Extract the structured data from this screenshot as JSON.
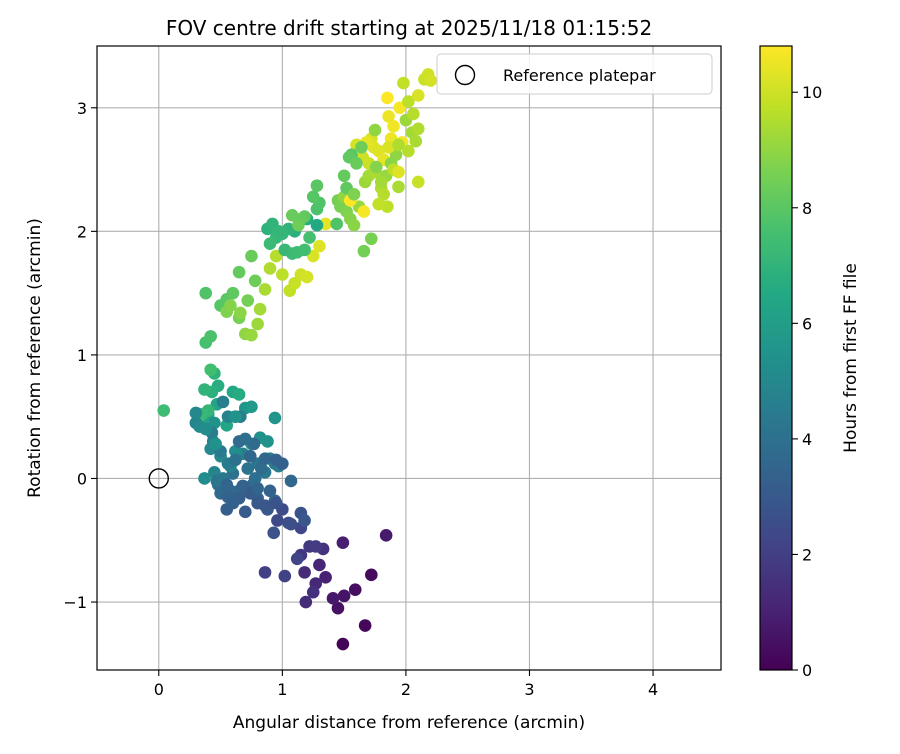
{
  "chart_data": {
    "type": "scatter",
    "title": "FOV centre drift starting at 2025/11/18 01:15:52",
    "xlabel": "Angular distance from reference (arcmin)",
    "ylabel": "Rotation from reference (arcmin)",
    "xlim": [
      -0.5,
      4.55
    ],
    "ylim": [
      -1.55,
      3.5
    ],
    "xticks": [
      0,
      1,
      2,
      3,
      4
    ],
    "yticks": [
      -1,
      0,
      1,
      2,
      3
    ],
    "xtick_labels": [
      "0",
      "1",
      "2",
      "3",
      "4"
    ],
    "ytick_labels": [
      "−1",
      "0",
      "1",
      "2",
      "3"
    ],
    "grid": true,
    "legend": {
      "position": "top-right",
      "label": "Reference platepar"
    },
    "reference_point": {
      "x": 0,
      "y": 0
    },
    "colorbar": {
      "label": "Hours from first FF file",
      "range": [
        0,
        10.8
      ],
      "ticks": [
        0,
        2,
        4,
        6,
        8,
        10
      ],
      "tick_labels": [
        "0",
        "2",
        "4",
        "6",
        "8",
        "10"
      ],
      "colormap": "viridis"
    },
    "points": [
      [
        1.49,
        -1.34,
        0.1
      ],
      [
        1.67,
        -1.19,
        0.2
      ],
      [
        1.72,
        -0.78,
        0.3
      ],
      [
        1.59,
        -0.9,
        0.4
      ],
      [
        1.45,
        -1.05,
        0.5
      ],
      [
        1.5,
        -0.95,
        0.6
      ],
      [
        1.41,
        -0.97,
        0.7
      ],
      [
        1.84,
        -0.46,
        0.8
      ],
      [
        1.49,
        -0.52,
        0.9
      ],
      [
        1.35,
        -0.8,
        1.0
      ],
      [
        1.3,
        -0.7,
        1.1
      ],
      [
        1.27,
        -0.85,
        1.2
      ],
      [
        1.18,
        -0.76,
        1.3
      ],
      [
        1.19,
        -1.0,
        1.4
      ],
      [
        1.25,
        -0.92,
        1.5
      ],
      [
        1.33,
        -0.57,
        1.6
      ],
      [
        1.15,
        -0.62,
        1.7
      ],
      [
        1.22,
        -0.55,
        1.8
      ],
      [
        1.27,
        -0.55,
        1.9
      ],
      [
        0.86,
        -0.76,
        2.0
      ],
      [
        1.02,
        -0.79,
        2.1
      ],
      [
        1.12,
        -0.65,
        2.2
      ],
      [
        1.15,
        -0.4,
        2.3
      ],
      [
        0.96,
        -0.34,
        2.4
      ],
      [
        1.0,
        -0.25,
        2.5
      ],
      [
        1.07,
        -0.37,
        2.6
      ],
      [
        0.93,
        -0.44,
        2.7
      ],
      [
        1.15,
        -0.28,
        2.8
      ],
      [
        1.18,
        -0.34,
        2.9
      ],
      [
        0.88,
        -0.25,
        3.0
      ],
      [
        0.7,
        -0.27,
        3.1
      ],
      [
        0.55,
        -0.25,
        3.2
      ],
      [
        0.8,
        -0.16,
        3.3
      ],
      [
        0.9,
        -0.1,
        3.4
      ],
      [
        0.94,
        -0.18,
        3.5
      ],
      [
        1.07,
        -0.02,
        3.6
      ],
      [
        0.76,
        -0.05,
        3.7
      ],
      [
        0.65,
        -0.1,
        3.8
      ],
      [
        0.48,
        -0.05,
        3.9
      ],
      [
        0.6,
        0.04,
        4.0
      ],
      [
        0.72,
        0.08,
        4.1
      ],
      [
        0.8,
        0.12,
        4.2
      ],
      [
        0.86,
        0.05,
        4.3
      ],
      [
        0.94,
        0.12,
        4.4
      ],
      [
        0.97,
        0.1,
        4.5
      ],
      [
        0.9,
        0.16,
        4.6
      ],
      [
        0.68,
        0.2,
        4.7
      ],
      [
        0.58,
        0.1,
        4.8
      ],
      [
        0.45,
        0.05,
        4.9
      ],
      [
        0.5,
        0.18,
        5.0
      ],
      [
        0.42,
        0.24,
        5.1
      ],
      [
        0.62,
        0.22,
        5.2
      ],
      [
        0.75,
        0.28,
        5.3
      ],
      [
        0.82,
        0.33,
        5.4
      ],
      [
        0.88,
        0.3,
        5.5
      ],
      [
        0.94,
        0.49,
        5.6
      ],
      [
        0.7,
        0.57,
        5.7
      ],
      [
        0.75,
        0.58,
        5.8
      ],
      [
        0.62,
        0.5,
        5.9
      ],
      [
        0.37,
        0.41,
        6.0
      ],
      [
        0.35,
        0.46,
        6.1
      ],
      [
        0.4,
        0.52,
        6.2
      ],
      [
        0.47,
        0.6,
        6.3
      ],
      [
        0.55,
        0.43,
        6.4
      ],
      [
        0.6,
        0.7,
        6.5
      ],
      [
        0.65,
        0.68,
        6.6
      ],
      [
        0.48,
        0.75,
        6.7
      ],
      [
        0.43,
        0.7,
        6.8
      ],
      [
        0.45,
        0.85,
        6.9
      ],
      [
        0.37,
        0.72,
        7.0
      ],
      [
        0.4,
        0.55,
        7.1
      ],
      [
        0.35,
        0.52,
        7.2
      ],
      [
        0.32,
        0.48,
        7.3
      ],
      [
        0.04,
        0.55,
        7.4
      ],
      [
        0.42,
        0.88,
        7.5
      ],
      [
        0.38,
        1.1,
        7.6
      ],
      [
        0.42,
        1.15,
        7.7
      ],
      [
        0.38,
        1.5,
        7.8
      ],
      [
        0.5,
        1.4,
        7.9
      ],
      [
        0.55,
        1.45,
        8.0
      ],
      [
        0.6,
        1.5,
        8.1
      ],
      [
        0.65,
        1.67,
        8.2
      ],
      [
        0.75,
        1.8,
        8.3
      ],
      [
        0.78,
        1.6,
        8.4
      ],
      [
        0.72,
        1.44,
        8.5
      ],
      [
        0.65,
        1.3,
        8.6
      ],
      [
        0.55,
        1.35,
        8.7
      ],
      [
        0.58,
        1.4,
        8.8
      ],
      [
        0.66,
        1.34,
        8.9
      ],
      [
        0.7,
        1.17,
        9.0
      ],
      [
        0.75,
        1.16,
        9.1
      ],
      [
        0.8,
        1.25,
        9.2
      ],
      [
        0.82,
        1.37,
        9.3
      ],
      [
        0.86,
        1.53,
        9.4
      ],
      [
        0.9,
        1.7,
        9.5
      ],
      [
        0.95,
        1.8,
        9.6
      ],
      [
        1.0,
        1.65,
        9.7
      ],
      [
        1.06,
        1.52,
        9.8
      ],
      [
        1.1,
        1.58,
        9.9
      ],
      [
        1.15,
        1.65,
        10.0
      ],
      [
        1.2,
        1.63,
        10.1
      ],
      [
        1.25,
        1.8,
        10.2
      ],
      [
        1.3,
        1.88,
        10.3
      ],
      [
        1.35,
        2.06,
        10.4
      ],
      [
        1.28,
        2.05,
        6.5
      ],
      [
        1.2,
        2.1,
        6.6
      ],
      [
        1.1,
        2.0,
        6.8
      ],
      [
        1.05,
        2.02,
        7.0
      ],
      [
        1.0,
        1.98,
        7.1
      ],
      [
        0.95,
        1.95,
        7.2
      ],
      [
        0.9,
        1.9,
        7.3
      ],
      [
        0.88,
        2.02,
        6.9
      ],
      [
        0.92,
        2.06,
        7.0
      ],
      [
        0.97,
        2.0,
        7.1
      ],
      [
        1.02,
        1.85,
        7.2
      ],
      [
        1.08,
        1.82,
        7.3
      ],
      [
        1.12,
        1.83,
        7.4
      ],
      [
        1.18,
        1.85,
        7.5
      ],
      [
        1.22,
        1.95,
        7.6
      ],
      [
        1.28,
        2.18,
        7.7
      ],
      [
        1.3,
        2.23,
        7.8
      ],
      [
        1.25,
        2.28,
        7.9
      ],
      [
        1.28,
        2.37,
        8.0
      ],
      [
        1.18,
        2.12,
        8.1
      ],
      [
        1.15,
        2.1,
        8.2
      ],
      [
        1.08,
        2.13,
        8.3
      ],
      [
        1.13,
        2.05,
        8.4
      ],
      [
        1.45,
        2.25,
        8.5
      ],
      [
        1.47,
        2.2,
        8.6
      ],
      [
        1.52,
        2.16,
        8.7
      ],
      [
        1.55,
        2.1,
        8.8
      ],
      [
        1.58,
        2.05,
        8.9
      ],
      [
        1.5,
        2.28,
        9.0
      ],
      [
        1.44,
        2.06,
        7.8
      ],
      [
        1.66,
        1.84,
        8.5
      ],
      [
        1.72,
        1.94,
        8.6
      ],
      [
        1.62,
        2.2,
        9.1
      ],
      [
        1.67,
        2.4,
        9.2
      ],
      [
        1.7,
        2.45,
        9.3
      ],
      [
        1.75,
        2.48,
        9.4
      ],
      [
        1.8,
        2.35,
        9.5
      ],
      [
        1.82,
        2.3,
        9.6
      ],
      [
        1.85,
        2.2,
        9.7
      ],
      [
        1.78,
        2.22,
        9.8
      ],
      [
        1.7,
        2.55,
        9.9
      ],
      [
        1.65,
        2.6,
        10.0
      ],
      [
        1.6,
        2.7,
        10.1
      ],
      [
        1.72,
        2.75,
        10.2
      ],
      [
        1.78,
        2.65,
        10.3
      ],
      [
        1.82,
        2.58,
        10.4
      ],
      [
        1.88,
        2.75,
        10.5
      ],
      [
        1.9,
        2.85,
        10.6
      ],
      [
        1.95,
        3.0,
        10.7
      ],
      [
        1.85,
        3.08,
        10.8
      ],
      [
        2.0,
        2.9,
        9.2
      ],
      [
        2.05,
        2.8,
        9.3
      ],
      [
        2.08,
        2.73,
        9.4
      ],
      [
        2.1,
        2.83,
        9.5
      ],
      [
        2.06,
        2.95,
        9.6
      ],
      [
        2.02,
        3.05,
        9.7
      ],
      [
        1.98,
        3.2,
        9.8
      ],
      [
        2.15,
        3.23,
        9.9
      ],
      [
        2.18,
        3.27,
        10.0
      ],
      [
        2.2,
        3.22,
        10.1
      ],
      [
        2.1,
        3.1,
        10.2
      ],
      [
        1.92,
        2.62,
        9.0
      ],
      [
        1.88,
        2.55,
        8.9
      ],
      [
        1.84,
        2.45,
        9.1
      ],
      [
        1.8,
        2.4,
        9.3
      ],
      [
        1.76,
        2.52,
        8.8
      ],
      [
        1.74,
        2.68,
        10.3
      ],
      [
        1.68,
        2.72,
        10.4
      ],
      [
        1.86,
        2.93,
        10.5
      ],
      [
        1.97,
        2.72,
        10.6
      ],
      [
        1.86,
        2.68,
        10.2
      ],
      [
        1.66,
        2.16,
        10.7
      ],
      [
        1.55,
        2.25,
        10.8
      ],
      [
        1.56,
        2.62,
        8.0
      ],
      [
        1.54,
        2.6,
        8.1
      ],
      [
        1.6,
        2.55,
        8.3
      ],
      [
        1.64,
        2.68,
        8.4
      ],
      [
        1.5,
        2.45,
        8.2
      ],
      [
        1.52,
        2.35,
        8.1
      ],
      [
        1.58,
        2.3,
        8.7
      ],
      [
        1.75,
        2.82,
        9.0
      ],
      [
        1.94,
        2.7,
        9.5
      ],
      [
        1.9,
        2.5,
        9.7
      ],
      [
        2.1,
        2.4,
        9.9
      ],
      [
        2.02,
        2.65,
        9.6
      ],
      [
        1.94,
        2.36,
        9.4
      ],
      [
        1.94,
        2.48,
        10.3
      ],
      [
        0.52,
        0.62,
        4.6
      ],
      [
        0.56,
        0.5,
        4.8
      ],
      [
        0.66,
        0.5,
        4.6
      ],
      [
        0.44,
        0.3,
        4.8
      ],
      [
        0.3,
        0.53,
        5.0
      ],
      [
        0.3,
        0.45,
        4.9
      ],
      [
        0.45,
        0.45,
        5.5
      ],
      [
        0.37,
        0.0,
        5.2
      ],
      [
        0.47,
        -0.02,
        4.2
      ],
      [
        0.52,
        0.0,
        4.3
      ],
      [
        0.5,
        -0.12,
        3.7
      ],
      [
        0.55,
        -0.05,
        3.5
      ],
      [
        0.56,
        0.12,
        4.5
      ],
      [
        0.62,
        0.15,
        4.0
      ],
      [
        0.58,
        -0.1,
        3.6
      ],
      [
        0.68,
        -0.06,
        3.4
      ],
      [
        0.78,
        0.0,
        3.9
      ],
      [
        0.83,
        0.08,
        3.8
      ],
      [
        0.86,
        0.16,
        3.6
      ],
      [
        0.74,
        0.18,
        3.6
      ],
      [
        0.77,
        0.28,
        3.7
      ],
      [
        0.65,
        0.3,
        3.8
      ],
      [
        0.7,
        0.32,
        3.9
      ],
      [
        0.95,
        0.15,
        3.4
      ],
      [
        1.0,
        0.12,
        3.3
      ],
      [
        0.65,
        -0.16,
        3.2
      ],
      [
        0.74,
        -0.12,
        3.1
      ],
      [
        0.8,
        -0.2,
        3.0
      ],
      [
        0.86,
        -0.22,
        2.9
      ],
      [
        0.8,
        -0.08,
        3.5
      ],
      [
        0.95,
        -0.2,
        2.8
      ],
      [
        1.05,
        -0.36,
        2.6
      ],
      [
        0.56,
        -0.15,
        3.4
      ],
      [
        0.6,
        -0.2,
        3.3
      ],
      [
        0.5,
        0.22,
        4.4
      ],
      [
        0.43,
        0.37,
        4.6
      ],
      [
        0.33,
        0.42,
        5.0
      ],
      [
        0.38,
        0.4,
        5.2
      ],
      [
        0.62,
        0.5,
        5.5
      ],
      [
        0.46,
        0.28,
        5.4
      ]
    ]
  }
}
